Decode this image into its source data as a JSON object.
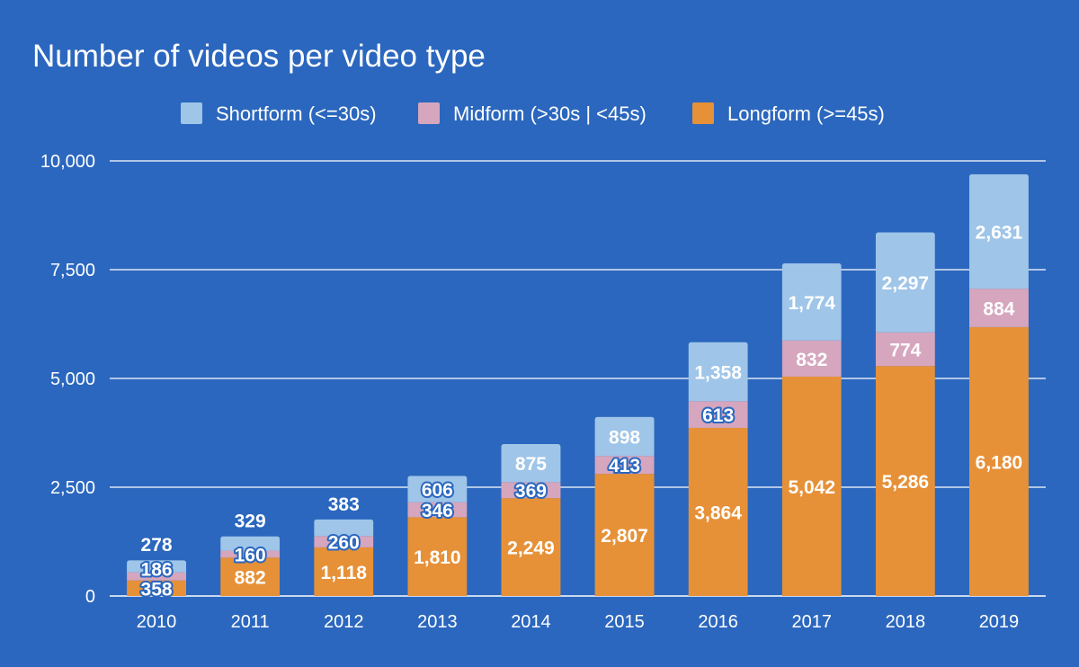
{
  "chart_data": {
    "type": "bar",
    "stacked": true,
    "title": "Number of videos per video type",
    "xlabel": "",
    "ylabel": "",
    "categories": [
      "2010",
      "2011",
      "2012",
      "2013",
      "2014",
      "2015",
      "2016",
      "2017",
      "2018",
      "2019"
    ],
    "series": [
      {
        "name": "Longform (>=45s)",
        "color": "#E69138",
        "values": [
          358,
          882,
          1118,
          1810,
          2249,
          2807,
          3864,
          5042,
          5286,
          6180
        ],
        "labels": [
          "358",
          "882",
          "1,118",
          "1,810",
          "2,249",
          "2,807",
          "3,864",
          "5,042",
          "5,286",
          "6,180"
        ]
      },
      {
        "name": "Midform (>30s | <45s)",
        "color": "#D5A6BD",
        "values": [
          186,
          160,
          260,
          346,
          369,
          413,
          613,
          832,
          774,
          884
        ],
        "labels": [
          "186",
          "160",
          "260",
          "346",
          "369",
          "413",
          "613",
          "832",
          "774",
          "884"
        ]
      },
      {
        "name": "Shortform (<=30s)",
        "color": "#9FC5E8",
        "values": [
          278,
          329,
          383,
          606,
          875,
          898,
          1358,
          1774,
          2297,
          2631
        ],
        "labels": [
          "278",
          "329",
          "383",
          "606",
          "875",
          "898",
          "1,358",
          "1,774",
          "2,297",
          "2,631"
        ]
      }
    ],
    "legend_order": [
      2,
      1,
      0
    ],
    "ylim": [
      0,
      10000
    ],
    "yticks": [
      0,
      2500,
      5000,
      7500,
      10000
    ],
    "ytick_labels": [
      "0",
      "2,500",
      "5,000",
      "7,500",
      "10,000"
    ],
    "grid": true,
    "legend_position": "top",
    "background": "#2B67BE"
  }
}
